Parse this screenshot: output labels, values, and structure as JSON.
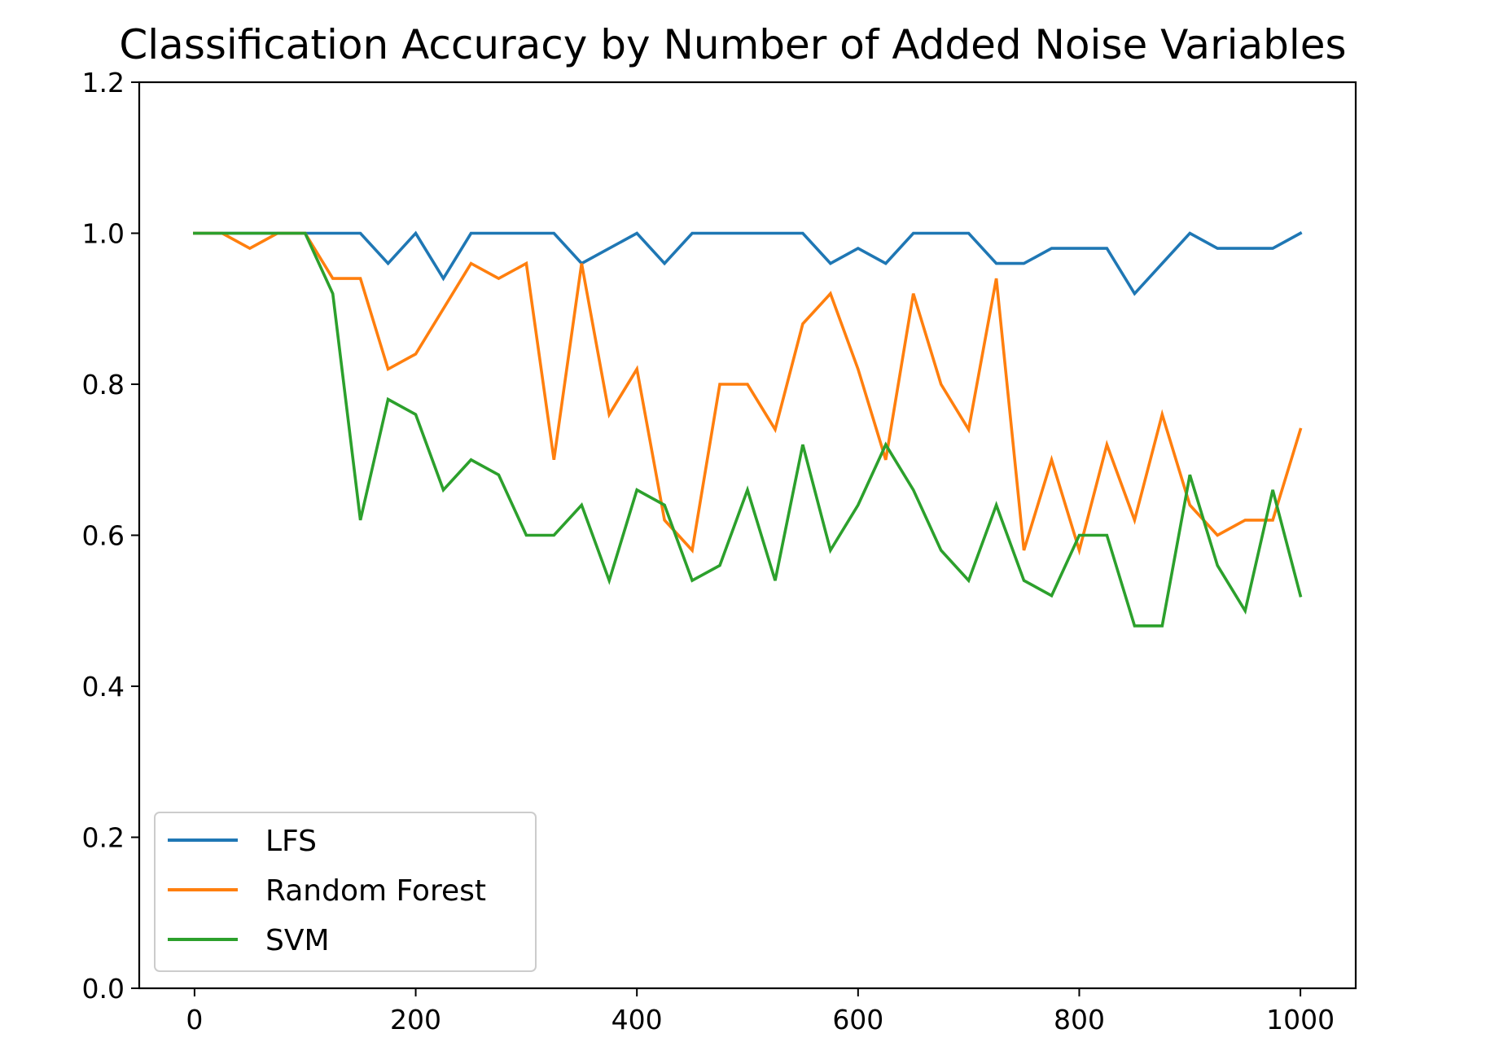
{
  "chart_data": {
    "type": "line",
    "title": "Classification Accuracy by Number of Added Noise Variables",
    "xlabel": "",
    "ylabel": "",
    "xlim": [
      -50,
      1050
    ],
    "ylim": [
      0.0,
      1.2
    ],
    "xticks": [
      0,
      200,
      400,
      600,
      800,
      1000
    ],
    "xtick_labels": [
      "0",
      "200",
      "400",
      "600",
      "800",
      "1000"
    ],
    "yticks": [
      0.0,
      0.2,
      0.4,
      0.6,
      0.8,
      1.0,
      1.2
    ],
    "ytick_labels": [
      "0.0",
      "0.2",
      "0.4",
      "0.6",
      "0.8",
      "1.0",
      "1.2"
    ],
    "grid": false,
    "legend_position": "lower-left",
    "x": [
      0,
      25,
      50,
      75,
      100,
      125,
      150,
      175,
      200,
      225,
      250,
      275,
      300,
      325,
      350,
      375,
      400,
      425,
      450,
      475,
      500,
      525,
      550,
      575,
      600,
      625,
      650,
      675,
      700,
      725,
      750,
      775,
      800,
      825,
      850,
      875,
      900,
      925,
      950,
      975,
      1000
    ],
    "series": [
      {
        "name": "LFS",
        "color": "#1f77b4",
        "values": [
          1.0,
          1.0,
          1.0,
          1.0,
          1.0,
          1.0,
          1.0,
          0.96,
          1.0,
          0.94,
          1.0,
          1.0,
          1.0,
          1.0,
          0.96,
          0.98,
          1.0,
          0.96,
          1.0,
          1.0,
          1.0,
          1.0,
          1.0,
          0.96,
          0.98,
          0.96,
          1.0,
          1.0,
          1.0,
          0.96,
          0.96,
          0.98,
          0.98,
          0.98,
          0.92,
          0.96,
          1.0,
          0.98,
          0.98,
          0.98,
          1.0
        ]
      },
      {
        "name": "Random Forest",
        "color": "#ff7f0e",
        "values": [
          1.0,
          1.0,
          0.98,
          1.0,
          1.0,
          0.94,
          0.94,
          0.82,
          0.84,
          0.9,
          0.96,
          0.94,
          0.96,
          0.7,
          0.96,
          0.76,
          0.82,
          0.62,
          0.58,
          0.8,
          0.8,
          0.74,
          0.88,
          0.92,
          0.82,
          0.7,
          0.92,
          0.8,
          0.74,
          0.94,
          0.58,
          0.7,
          0.58,
          0.72,
          0.62,
          0.76,
          0.64,
          0.6,
          0.62,
          0.62,
          0.74
        ]
      },
      {
        "name": "SVM",
        "color": "#2ca02c",
        "values": [
          1.0,
          1.0,
          1.0,
          1.0,
          1.0,
          0.92,
          0.62,
          0.78,
          0.76,
          0.66,
          0.7,
          0.68,
          0.6,
          0.6,
          0.64,
          0.54,
          0.66,
          0.64,
          0.54,
          0.56,
          0.66,
          0.54,
          0.72,
          0.58,
          0.64,
          0.72,
          0.66,
          0.58,
          0.54,
          0.64,
          0.54,
          0.52,
          0.6,
          0.6,
          0.48,
          0.48,
          0.68,
          0.56,
          0.5,
          0.66,
          0.52
        ]
      }
    ]
  }
}
